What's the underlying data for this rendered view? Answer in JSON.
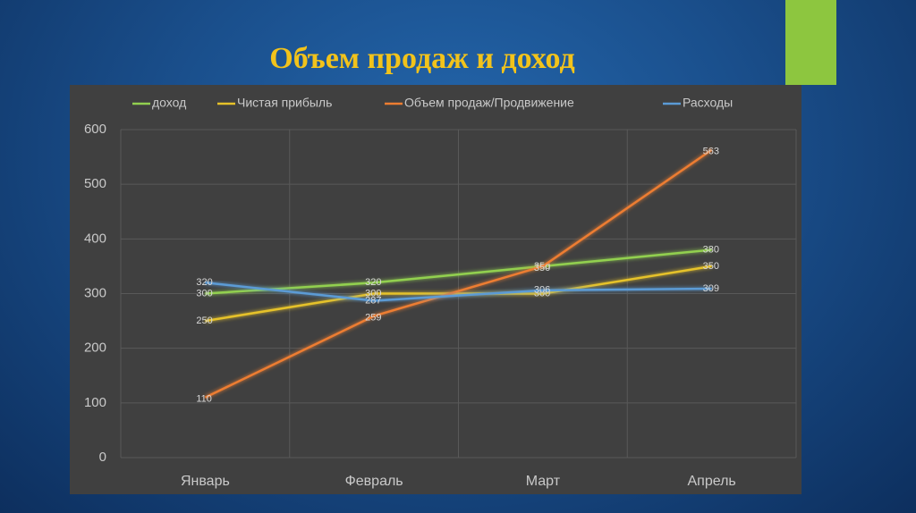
{
  "chart_data": {
    "type": "line",
    "title": "Объем продаж и доход",
    "categories": [
      "Январь",
      "Февраль",
      "Март",
      "Апрель"
    ],
    "series": [
      {
        "name": "доход",
        "color": "#92d050",
        "values": [
          300,
          320,
          350,
          380
        ]
      },
      {
        "name": "Чистая прибыль",
        "color": "#e6c229",
        "values": [
          250,
          300,
          300,
          350
        ]
      },
      {
        "name": "Объем продаж/Продвижение",
        "color": "#ed7d31",
        "values": [
          110,
          259,
          350,
          563
        ]
      },
      {
        "name": "Расходы",
        "color": "#5b9bd5",
        "values": [
          320,
          287,
          306,
          309
        ]
      }
    ],
    "ylim": [
      0,
      600
    ],
    "yticks": [
      0,
      100,
      200,
      300,
      400,
      500,
      600
    ],
    "grid": true,
    "legend": "top"
  }
}
